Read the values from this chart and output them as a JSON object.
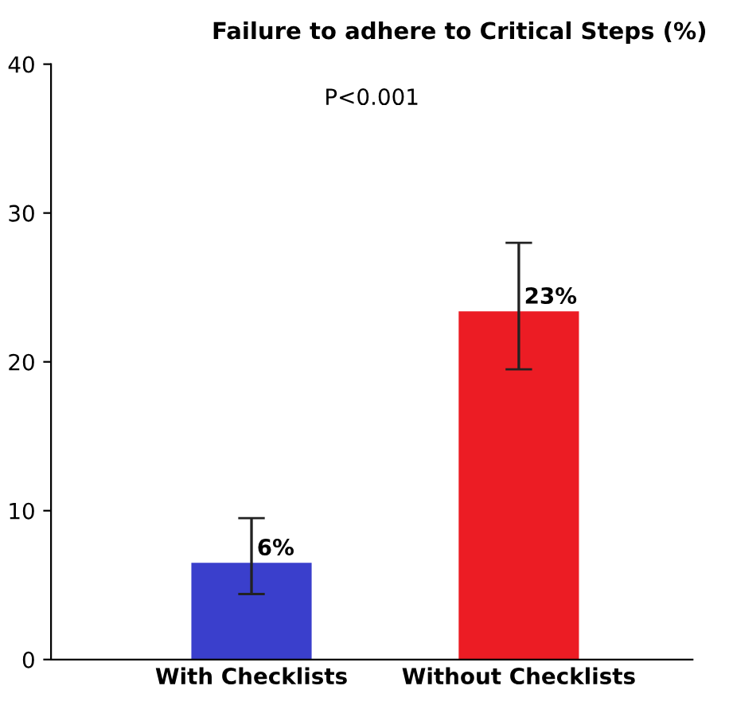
{
  "chart_data": {
    "type": "bar",
    "title": "Failure to adhere to Critical Steps (%)",
    "categories": [
      "With Checklists",
      "Without Checklists"
    ],
    "values": [
      6.5,
      23.4
    ],
    "colors": [
      "#3a3fcc",
      "#ec1c24"
    ],
    "errors": [
      [
        4.4,
        9.5
      ],
      [
        19.5,
        28.0
      ]
    ],
    "value_labels": [
      "6%",
      "23%"
    ],
    "annotations": [
      "P<0.001"
    ],
    "ylim": [
      0,
      40
    ],
    "yticks": [
      0,
      10,
      20,
      30,
      40
    ],
    "grid": false,
    "legend": false
  }
}
